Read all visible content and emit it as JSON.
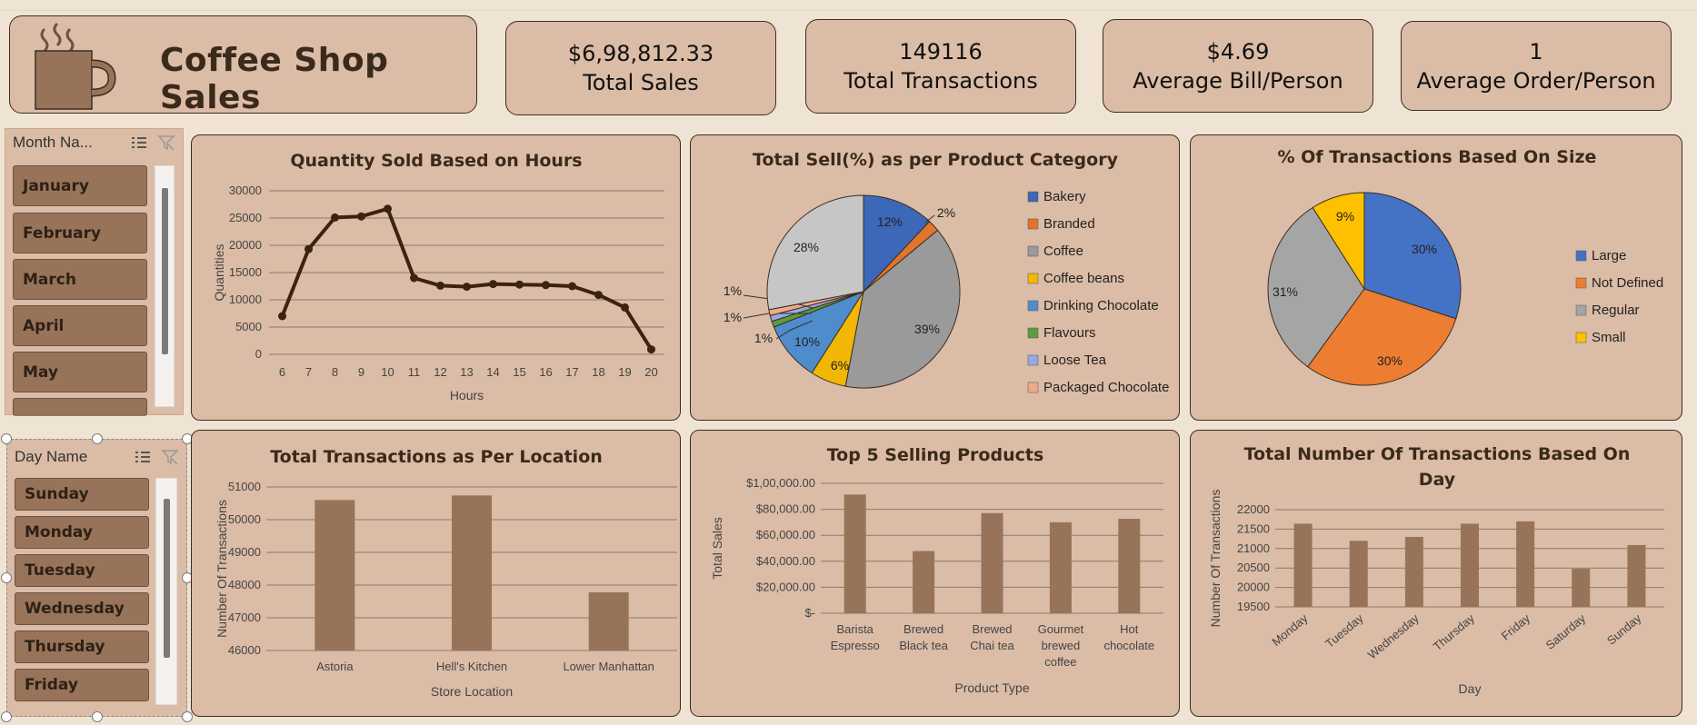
{
  "header": {
    "title": "Coffee Shop Sales"
  },
  "kpis": [
    {
      "value": "$6,98,812.33",
      "label": "Total Sales"
    },
    {
      "value": "149116",
      "label": "Total Transactions"
    },
    {
      "value": "$4.69",
      "label": "Average Bill/Person"
    },
    {
      "value": "1",
      "label": "Average Order/Person"
    }
  ],
  "slicers": {
    "month": {
      "header": "Month Na...",
      "items": [
        "January",
        "February",
        "March",
        "April",
        "May"
      ]
    },
    "day": {
      "header": "Day Name",
      "items": [
        "Sunday",
        "Monday",
        "Tuesday",
        "Wednesday",
        "Thursday",
        "Friday"
      ]
    }
  },
  "colors": {
    "bar": "#977459",
    "line": "#3b2212",
    "bakery": "#3d67b8",
    "branded": "#e0752c",
    "coffee": "#9a9a9a",
    "coffee_beans": "#f2b705",
    "drinking_chocolate": "#4f8ccb",
    "flavours": "#5b9b3e",
    "loose_tea": "#97a9dd",
    "packaged_chocolate": "#f0a98a",
    "tea": "#c6c6c6",
    "size_large": "#4472c4",
    "size_not_defined": "#ed7d31",
    "size_regular": "#a5a5a5",
    "size_small": "#ffc000"
  },
  "chart_data": [
    {
      "id": "hours",
      "type": "line",
      "title": "Quantity Sold Based on Hours",
      "xlabel": "Hours",
      "ylabel": "Quantities",
      "x": [
        6,
        7,
        8,
        9,
        10,
        11,
        12,
        13,
        14,
        15,
        16,
        17,
        18,
        19,
        20
      ],
      "values": [
        7000,
        19300,
        25100,
        25300,
        26700,
        14000,
        12600,
        12400,
        12900,
        12800,
        12700,
        12500,
        10900,
        8600,
        900
      ],
      "ylim": [
        0,
        30000
      ],
      "yticks": [
        "0",
        "5000",
        "10000",
        "15000",
        "20000",
        "25000",
        "30000"
      ],
      "grid": true
    },
    {
      "id": "category",
      "type": "pie",
      "title": "Total Sell(%) as per Product Category",
      "slices": [
        {
          "name": "Bakery",
          "value": 12,
          "label": "12%"
        },
        {
          "name": "Branded",
          "value": 2,
          "label": "2%"
        },
        {
          "name": "Coffee",
          "value": 39,
          "label": "39%"
        },
        {
          "name": "Coffee beans",
          "value": 6,
          "label": "6%"
        },
        {
          "name": "Drinking Chocolate",
          "value": 10,
          "label": "10%"
        },
        {
          "name": "Flavours",
          "value": 1,
          "label": "1%"
        },
        {
          "name": "Loose Tea",
          "value": 1,
          "label": "1%"
        },
        {
          "name": "Packaged Chocolate",
          "value": 1,
          "label": "1%"
        },
        {
          "name": "",
          "value": 28,
          "label": "28%"
        }
      ],
      "legend": [
        "Bakery",
        "Branded",
        "Coffee",
        "Coffee beans",
        "Drinking Chocolate",
        "Flavours",
        "Loose Tea",
        "Packaged Chocolate"
      ],
      "legend_position": "right"
    },
    {
      "id": "size",
      "type": "pie",
      "title": "% Of Transactions Based On Size",
      "slices": [
        {
          "name": "Large",
          "value": 30,
          "label": "30%"
        },
        {
          "name": "Not Defined",
          "value": 30,
          "label": "30%"
        },
        {
          "name": "Regular",
          "value": 31,
          "label": "31%"
        },
        {
          "name": "Small",
          "value": 9,
          "label": "9%"
        }
      ],
      "legend_position": "right"
    },
    {
      "id": "location",
      "type": "bar",
      "title": "Total Transactions as Per Location",
      "xlabel": "Store Location",
      "ylabel": "Number Of Transactions",
      "categories": [
        "Astoria",
        "Hell's Kitchen",
        "Lower Manhattan"
      ],
      "values": [
        50600,
        50740,
        47780
      ],
      "ylim": [
        46000,
        51000
      ],
      "yticks": [
        "46000",
        "47000",
        "48000",
        "49000",
        "50000",
        "51000"
      ],
      "grid": true
    },
    {
      "id": "products",
      "type": "bar",
      "title": "Top 5 Selling Products",
      "xlabel": "Product Type",
      "ylabel": "Total Sales",
      "categories": [
        [
          "Barista",
          "Espresso"
        ],
        [
          "Brewed",
          "Black tea"
        ],
        [
          "Brewed",
          "Chai tea"
        ],
        [
          "Gourmet",
          "brewed",
          "coffee"
        ],
        [
          "Hot",
          "chocolate"
        ]
      ],
      "values": [
        91400,
        47900,
        77100,
        70000,
        72700
      ],
      "ylim": [
        0,
        100000
      ],
      "yticks": [
        "$-",
        "$20,000.00",
        "$40,000.00",
        "$60,000.00",
        "$80,000.00",
        "$1,00,000.00"
      ],
      "grid": true
    },
    {
      "id": "days",
      "type": "bar",
      "title": "Total Number Of Transactions Based On Day",
      "xlabel": "Day",
      "ylabel": "Number Of Transactions",
      "categories": [
        "Monday",
        "Tuesday",
        "Wednesday",
        "Thursday",
        "Friday",
        "Saturday",
        "Sunday"
      ],
      "values": [
        21640,
        21200,
        21300,
        21640,
        21700,
        20480,
        21090
      ],
      "ylim": [
        19500,
        22000
      ],
      "yticks": [
        "19500",
        "20000",
        "20500",
        "21000",
        "21500",
        "22000"
      ],
      "grid": true
    }
  ]
}
